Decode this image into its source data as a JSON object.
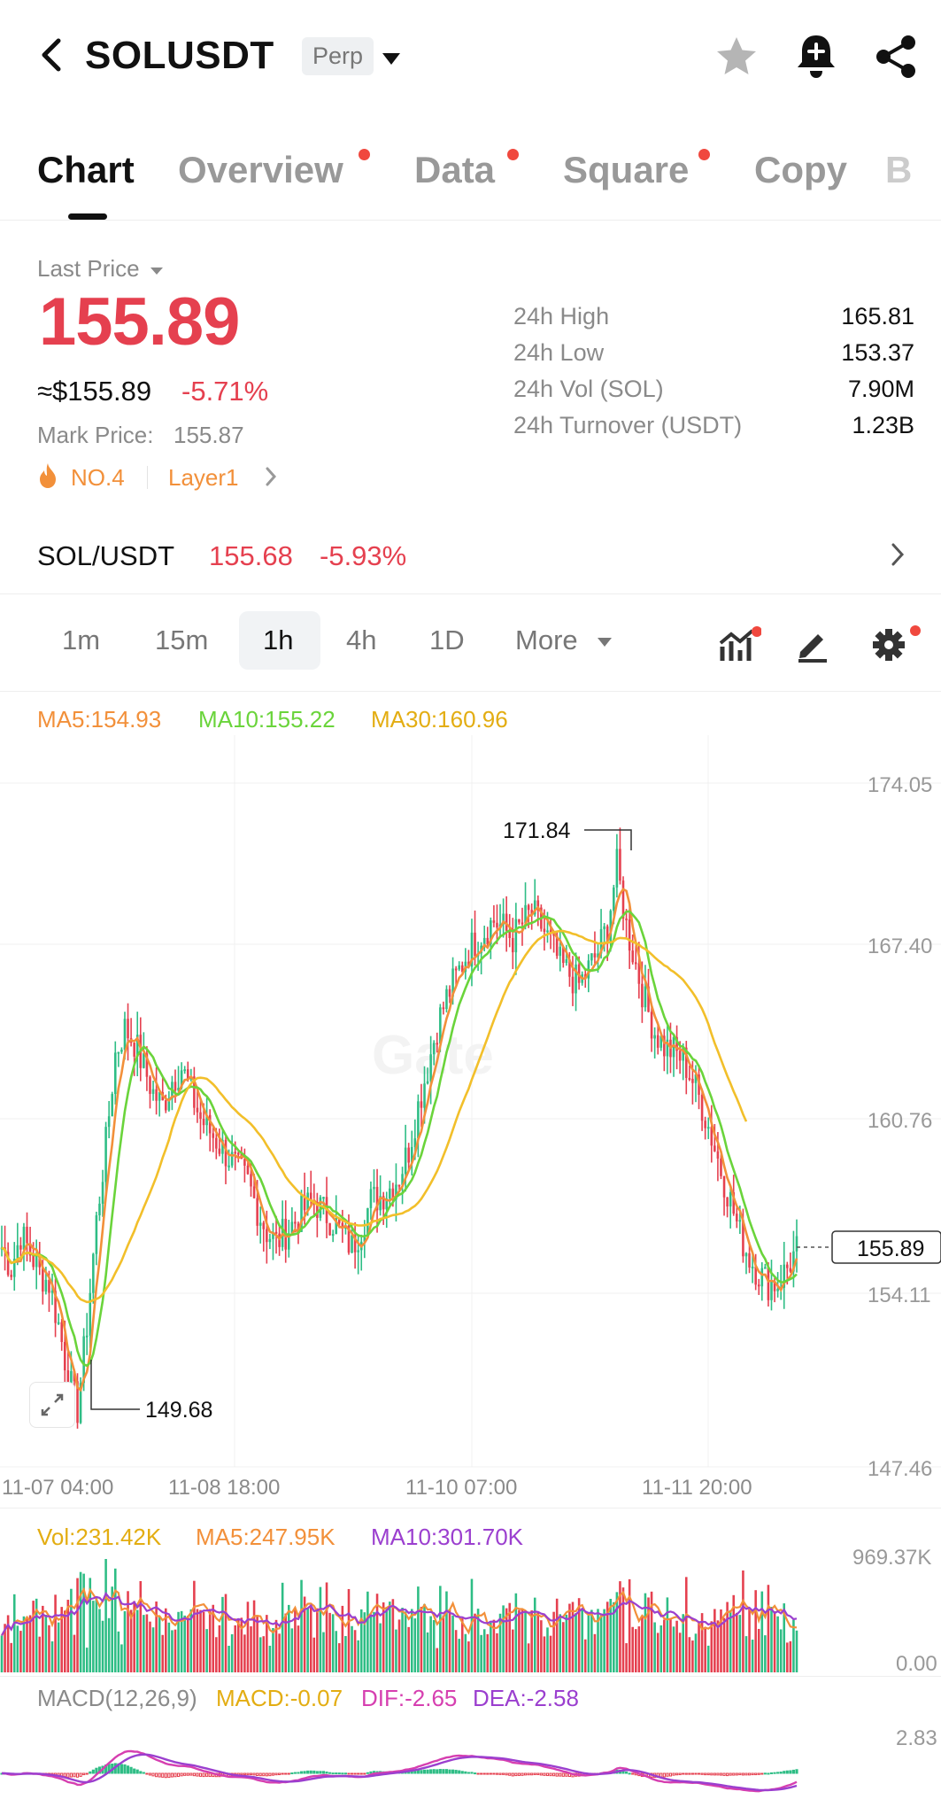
{
  "header": {
    "title": "SOLUSDT",
    "badge": "Perp"
  },
  "tabs": [
    {
      "label": "Chart",
      "active": true,
      "dot": false
    },
    {
      "label": "Overview",
      "dot": true
    },
    {
      "label": "Data",
      "dot": true
    },
    {
      "label": "Square",
      "dot": true
    },
    {
      "label": "Copy",
      "dot": false
    },
    {
      "label": "B",
      "dot": false
    }
  ],
  "price": {
    "last_price_label": "Last Price",
    "last_price": "155.89",
    "usd_value": "≈$155.89",
    "change_pct": "-5.71%",
    "mark_label": "Mark Price:",
    "mark_value": "155.87",
    "rank": "NO.4",
    "sector": "Layer1"
  },
  "stats": [
    {
      "label": "24h High",
      "value": "165.81"
    },
    {
      "label": "24h Low",
      "value": "153.37"
    },
    {
      "label": "24h Vol (SOL)",
      "value": "7.90M"
    },
    {
      "label": "24h Turnover (USDT)",
      "value": "1.23B"
    }
  ],
  "spot": {
    "pair": "SOL/USDT",
    "price": "155.68",
    "change": "-5.93%"
  },
  "intervals": [
    {
      "label": "1m"
    },
    {
      "label": "15m"
    },
    {
      "label": "1h",
      "active": true
    },
    {
      "label": "4h"
    },
    {
      "label": "1D"
    },
    {
      "label": "More"
    }
  ],
  "legend": {
    "ma5": "MA5:154.93",
    "ma10": "MA10:155.22",
    "ma30": "MA30:160.96"
  },
  "vol_legend": {
    "vol": "Vol:231.42K",
    "ma5": "MA5:247.95K",
    "ma10": "MA10:301.70K"
  },
  "macd_legend": {
    "name": "MACD(12,26,9)",
    "macd": "MACD:-0.07",
    "dif": "DIF:-2.65",
    "dea": "DEA:-2.58"
  },
  "colors": {
    "up": "#2ebd85",
    "down": "#e5404f",
    "ma5": "#f2903a",
    "ma10": "#6ad43b",
    "ma30": "#f2bf2a",
    "macd_dif": "#d63fb0",
    "macd_dea": "#9b3fcf"
  },
  "chart_data": {
    "type": "candlestick",
    "y_ticks": [
      "174.05",
      "167.40",
      "160.76",
      "154.11",
      "147.46"
    ],
    "x_ticks": [
      "11-07 04:00",
      "11-08 18:00",
      "11-10 07:00",
      "11-11 20:00"
    ],
    "high_label": "171.84",
    "low_label": "149.68",
    "current_price_label": "155.89",
    "vol_ticks": [
      "969.37K",
      "0.00"
    ],
    "macd_ticks": [
      "2.83"
    ],
    "ylim": [
      147.46,
      174.05
    ],
    "close_path": [
      156.0,
      155.2,
      156.5,
      155.8,
      155.0,
      154.6,
      153.0,
      151.0,
      149.7,
      153.0,
      157.0,
      160.0,
      163.5,
      164.5,
      164.0,
      163.0,
      162.0,
      161.5,
      162.5,
      163.0,
      162.0,
      161.0,
      160.5,
      160.0,
      159.5,
      159.0,
      158.5,
      157.5,
      156.6,
      156.2,
      156.6,
      157.0,
      157.5,
      157.8,
      157.4,
      157.0,
      156.5,
      156.0,
      156.8,
      157.8,
      158.0,
      158.3,
      158.8,
      159.8,
      161.5,
      163.0,
      164.6,
      165.7,
      166.5,
      167.3,
      167.9,
      168.3,
      168.7,
      168.4,
      168.0,
      168.6,
      169.0,
      168.5,
      167.8,
      167.0,
      166.6,
      166.2,
      166.8,
      167.5,
      168.5,
      170.8,
      168.5,
      167.0,
      165.5,
      164.4,
      163.8,
      163.6,
      163.3,
      162.5,
      161.5,
      160.3,
      159.0,
      157.8,
      156.5,
      155.6,
      155.0,
      154.6,
      154.6,
      155.2,
      155.89
    ]
  }
}
